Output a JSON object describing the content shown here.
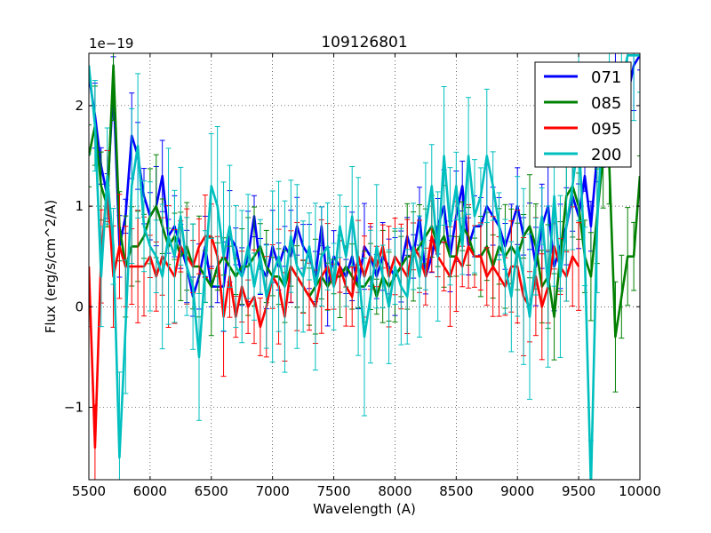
{
  "chart_data": {
    "type": "line",
    "title": "109126801",
    "xlabel": "Wavelength (A)",
    "ylabel": "Flux (erg/s/cm^2/A)",
    "offset_label": "1e−19",
    "xlim": [
      5500,
      10000
    ],
    "ylim": [
      -1.72,
      2.52
    ],
    "xticks": [
      5500,
      6000,
      6500,
      7000,
      7500,
      8000,
      8500,
      9000,
      9500,
      10000
    ],
    "yticks": [
      -1,
      0,
      1,
      2
    ],
    "ytick_labels": [
      "−1",
      "0",
      "1",
      "2"
    ],
    "grid": true,
    "legend_position": "top-right",
    "series": [
      {
        "name": "071",
        "color": "#0000ff",
        "x": [
          5500,
          5550,
          5600,
          5650,
          5700,
          5750,
          5800,
          5850,
          5900,
          5950,
          6000,
          6050,
          6100,
          6150,
          6200,
          6250,
          6300,
          6350,
          6400,
          6450,
          6500,
          6550,
          6600,
          6650,
          6700,
          6750,
          6800,
          6850,
          6900,
          6950,
          7000,
          7050,
          7100,
          7150,
          7200,
          7250,
          7300,
          7350,
          7400,
          7450,
          7500,
          7550,
          7600,
          7650,
          7700,
          7750,
          7800,
          7850,
          7900,
          7950,
          8000,
          8050,
          8100,
          8150,
          8200,
          8250,
          8300,
          8350,
          8400,
          8450,
          8500,
          8550,
          8600,
          8650,
          8700,
          8750,
          8800,
          8850,
          8900,
          8950,
          9000,
          9050,
          9100,
          9150,
          9200,
          9250,
          9300,
          9350,
          9400,
          9450,
          9500,
          9550,
          9600,
          9650,
          9700,
          9750,
          9800,
          9850,
          9900,
          9950,
          10000
        ],
        "values": [
          2.3,
          1.9,
          1.4,
          1.1,
          2.2,
          0.6,
          0.9,
          1.7,
          1.5,
          1.1,
          0.9,
          1.0,
          1.3,
          0.7,
          0.8,
          0.6,
          0.4,
          0.1,
          0.3,
          0.6,
          0.2,
          0.2,
          0.2,
          0.7,
          0.6,
          0.3,
          0.5,
          0.9,
          0.4,
          0.3,
          0.6,
          0.4,
          0.6,
          0.5,
          0.8,
          0.6,
          0.5,
          0.3,
          0.8,
          0.2,
          0.5,
          0.4,
          0.3,
          0.5,
          0.2,
          0.6,
          0.5,
          0.3,
          0.5,
          0.4,
          0.3,
          0.4,
          0.7,
          0.5,
          0.9,
          0.3,
          0.5,
          0.8,
          1.0,
          0.5,
          0.9,
          1.2,
          0.6,
          0.8,
          0.8,
          1.0,
          0.9,
          0.8,
          0.6,
          0.8,
          1.0,
          0.7,
          0.8,
          0.4,
          0.8,
          1.0,
          0.4,
          0.6,
          0.8,
          1.1,
          0.9,
          1.3,
          0.8,
          1.5,
          1.6,
          2.0,
          2.2,
          1.9,
          2.1,
          2.4,
          2.5
        ]
      },
      {
        "name": "085",
        "color": "#008000",
        "x": [
          5500,
          5550,
          5600,
          5650,
          5700,
          5750,
          5800,
          5850,
          5900,
          5950,
          6000,
          6050,
          6100,
          6150,
          6200,
          6250,
          6300,
          6350,
          6400,
          6450,
          6500,
          6550,
          6600,
          6650,
          6700,
          6750,
          6800,
          6850,
          6900,
          6950,
          7000,
          7050,
          7100,
          7150,
          7200,
          7250,
          7300,
          7350,
          7400,
          7450,
          7500,
          7550,
          7600,
          7650,
          7700,
          7750,
          7800,
          7850,
          7900,
          7950,
          8000,
          8050,
          8100,
          8150,
          8200,
          8250,
          8300,
          8350,
          8400,
          8450,
          8500,
          8550,
          8600,
          8650,
          8700,
          8750,
          8800,
          8850,
          8900,
          8950,
          9000,
          9050,
          9100,
          9150,
          9200,
          9250,
          9300,
          9350,
          9400,
          9450,
          9500,
          9550,
          9600,
          9650,
          9700,
          9750,
          9800,
          9850,
          9900,
          9950,
          10000
        ],
        "values": [
          1.5,
          1.8,
          1.2,
          1.0,
          2.4,
          0.8,
          0.4,
          0.6,
          0.6,
          0.7,
          0.9,
          1.0,
          0.8,
          0.6,
          0.7,
          0.5,
          0.6,
          0.4,
          0.4,
          0.3,
          0.2,
          0.4,
          0.5,
          0.4,
          0.3,
          0.4,
          0.4,
          0.5,
          0.6,
          0.4,
          0.3,
          0.3,
          0.2,
          0.4,
          0.3,
          0.2,
          0.1,
          0.2,
          0.3,
          0.2,
          0.3,
          0.3,
          0.4,
          0.3,
          0.2,
          0.2,
          0.3,
          0.1,
          0.3,
          0.2,
          0.3,
          0.4,
          0.5,
          0.5,
          0.6,
          0.7,
          0.8,
          0.6,
          0.7,
          0.5,
          0.5,
          0.8,
          0.7,
          0.5,
          0.5,
          0.6,
          0.4,
          0.6,
          0.5,
          0.6,
          0.5,
          0.7,
          0.8,
          0.6,
          0.2,
          0.3,
          -0.1,
          0.5,
          1.1,
          1.2,
          1.0,
          0.5,
          0.3,
          0.9,
          1.5,
          1.4,
          -0.3,
          0.1,
          0.5,
          0.5,
          1.3
        ]
      },
      {
        "name": "095",
        "color": "#ff0000",
        "x": [
          5500,
          5550,
          5600,
          5650,
          5700,
          5750,
          5800,
          5850,
          5900,
          5950,
          6000,
          6050,
          6100,
          6150,
          6200,
          6250,
          6300,
          6350,
          6400,
          6450,
          6500,
          6550,
          6600,
          6650,
          6700,
          6750,
          6800,
          6850,
          6900,
          6950,
          7000,
          7050,
          7100,
          7150,
          7200,
          7250,
          7300,
          7350,
          7400,
          7450,
          7500,
          7550,
          7600,
          7650,
          7700,
          7750,
          7800,
          7850,
          7900,
          7950,
          8000,
          8050,
          8100,
          8150,
          8200,
          8250,
          8300,
          8350,
          8400,
          8450,
          8500,
          8550,
          8600,
          8650,
          8700,
          8750,
          8800,
          8850,
          8900,
          8950,
          9000,
          9050,
          9100,
          9150,
          9200,
          9250,
          9300,
          9350,
          9400,
          9450,
          9500
        ],
        "values": [
          0.4,
          -1.4,
          0.5,
          1.2,
          0.3,
          0.6,
          0.4,
          0.4,
          0.4,
          0.4,
          0.5,
          0.3,
          0.5,
          0.4,
          0.3,
          0.6,
          0.5,
          0.4,
          0.6,
          0.7,
          0.7,
          0.5,
          -0.1,
          0.3,
          -0.1,
          0.2,
          0.0,
          0.1,
          -0.2,
          0.0,
          0.3,
          0.2,
          -0.1,
          0.4,
          0.3,
          0.2,
          0.1,
          0.0,
          0.3,
          0.4,
          0.2,
          0.4,
          0.2,
          0.1,
          0.5,
          0.3,
          0.5,
          0.4,
          0.6,
          0.3,
          0.5,
          0.4,
          0.3,
          0.6,
          0.5,
          0.3,
          0.7,
          0.5,
          0.4,
          0.3,
          0.5,
          0.4,
          0.6,
          0.5,
          0.5,
          0.3,
          0.4,
          0.3,
          0.2,
          0.4,
          0.4,
          0.1,
          0.0,
          0.3,
          0.0,
          0.2,
          0.6,
          0.4,
          0.3,
          0.5,
          0.4
        ]
      },
      {
        "name": "200",
        "color": "#00bfbf",
        "x": [
          5500,
          5550,
          5600,
          5650,
          5700,
          5750,
          5800,
          5850,
          5900,
          5950,
          6000,
          6050,
          6100,
          6150,
          6200,
          6250,
          6300,
          6350,
          6400,
          6450,
          6500,
          6550,
          6600,
          6650,
          6700,
          6750,
          6800,
          6850,
          6900,
          6950,
          7000,
          7050,
          7100,
          7150,
          7200,
          7250,
          7300,
          7350,
          7400,
          7450,
          7500,
          7550,
          7600,
          7650,
          7700,
          7750,
          7800,
          7850,
          7900,
          7950,
          8000,
          8050,
          8100,
          8150,
          8200,
          8250,
          8300,
          8350,
          8400,
          8450,
          8500,
          8550,
          8600,
          8650,
          8700,
          8750,
          8800,
          8850,
          8900,
          8950,
          9000,
          9050,
          9100,
          9150,
          9200,
          9250,
          9300,
          9350,
          9400,
          9450,
          9500,
          9550,
          9600,
          9650,
          9700,
          9750,
          9800,
          9850,
          9900,
          9950,
          10000
        ],
        "values": [
          2.4,
          1.8,
          0.3,
          1.3,
          0.6,
          -1.5,
          -0.2,
          1.2,
          1.6,
          0.8,
          0.6,
          0.5,
          0.3,
          0.7,
          0.5,
          0.9,
          0.4,
          0.2,
          -0.5,
          0.4,
          1.2,
          1.0,
          0.5,
          0.8,
          0.4,
          0.3,
          0.6,
          0.2,
          0.5,
          0.1,
          0.3,
          0.5,
          0.2,
          0.7,
          0.4,
          0.3,
          0.6,
          0.2,
          0.5,
          0.6,
          0.2,
          0.8,
          0.5,
          0.9,
          0.4,
          -0.3,
          0.1,
          0.6,
          0.3,
          0.0,
          0.4,
          0.2,
          0.1,
          0.6,
          0.3,
          0.8,
          1.2,
          0.5,
          1.5,
          0.8,
          1.2,
          0.6,
          1.5,
          0.9,
          1.1,
          1.5,
          1.2,
          0.8,
          0.4,
          0.1,
          0.6,
          0.3,
          -0.1,
          0.5,
          0.9,
          0.2,
          1.1,
          0.3,
          0.8,
          1.2,
          1.7,
          0.5,
          -1.8,
          0.8,
          2.0,
          2.4,
          1.9,
          2.2,
          2.5,
          2.5,
          2.5
        ]
      }
    ]
  }
}
